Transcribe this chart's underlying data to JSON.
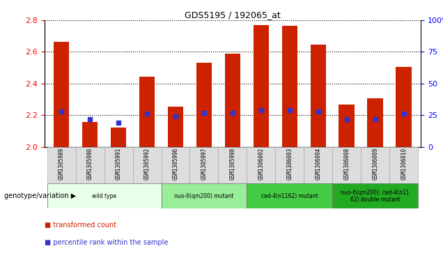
{
  "title": "GDS5195 / 192065_at",
  "samples": [
    "GSM1305989",
    "GSM1305990",
    "GSM1305991",
    "GSM1305992",
    "GSM1305996",
    "GSM1305997",
    "GSM1305998",
    "GSM1306002",
    "GSM1306003",
    "GSM1306004",
    "GSM1306008",
    "GSM1306009",
    "GSM1306010"
  ],
  "bar_values": [
    2.665,
    2.155,
    2.12,
    2.445,
    2.255,
    2.53,
    2.59,
    2.77,
    2.765,
    2.645,
    2.265,
    2.305,
    2.505
  ],
  "percentile_pct": [
    28,
    22,
    19,
    26,
    24,
    27,
    27,
    29,
    29,
    28,
    22,
    22,
    26
  ],
  "ylim_left": [
    2.0,
    2.8
  ],
  "ylim_right": [
    0,
    100
  ],
  "yticks_left": [
    2.0,
    2.2,
    2.4,
    2.6,
    2.8
  ],
  "yticks_right": [
    0,
    25,
    50,
    75,
    100
  ],
  "bar_color": "#cc2200",
  "percentile_color": "#3333cc",
  "groups": [
    {
      "label": "wild type",
      "start": 0,
      "end": 3,
      "color": "#e8ffe8"
    },
    {
      "label": "nuo-6(qm200) mutant",
      "start": 4,
      "end": 6,
      "color": "#99ee99"
    },
    {
      "label": "ced-4(n1162) mutant",
      "start": 7,
      "end": 9,
      "color": "#44cc44"
    },
    {
      "label": "nuo-6(qm200); ced-4(n11\n62) double mutant",
      "start": 10,
      "end": 12,
      "color": "#22aa22"
    }
  ],
  "xlabel_genotype": "genotype/variation",
  "legend_red": "transformed count",
  "legend_blue": "percentile rank within the sample"
}
